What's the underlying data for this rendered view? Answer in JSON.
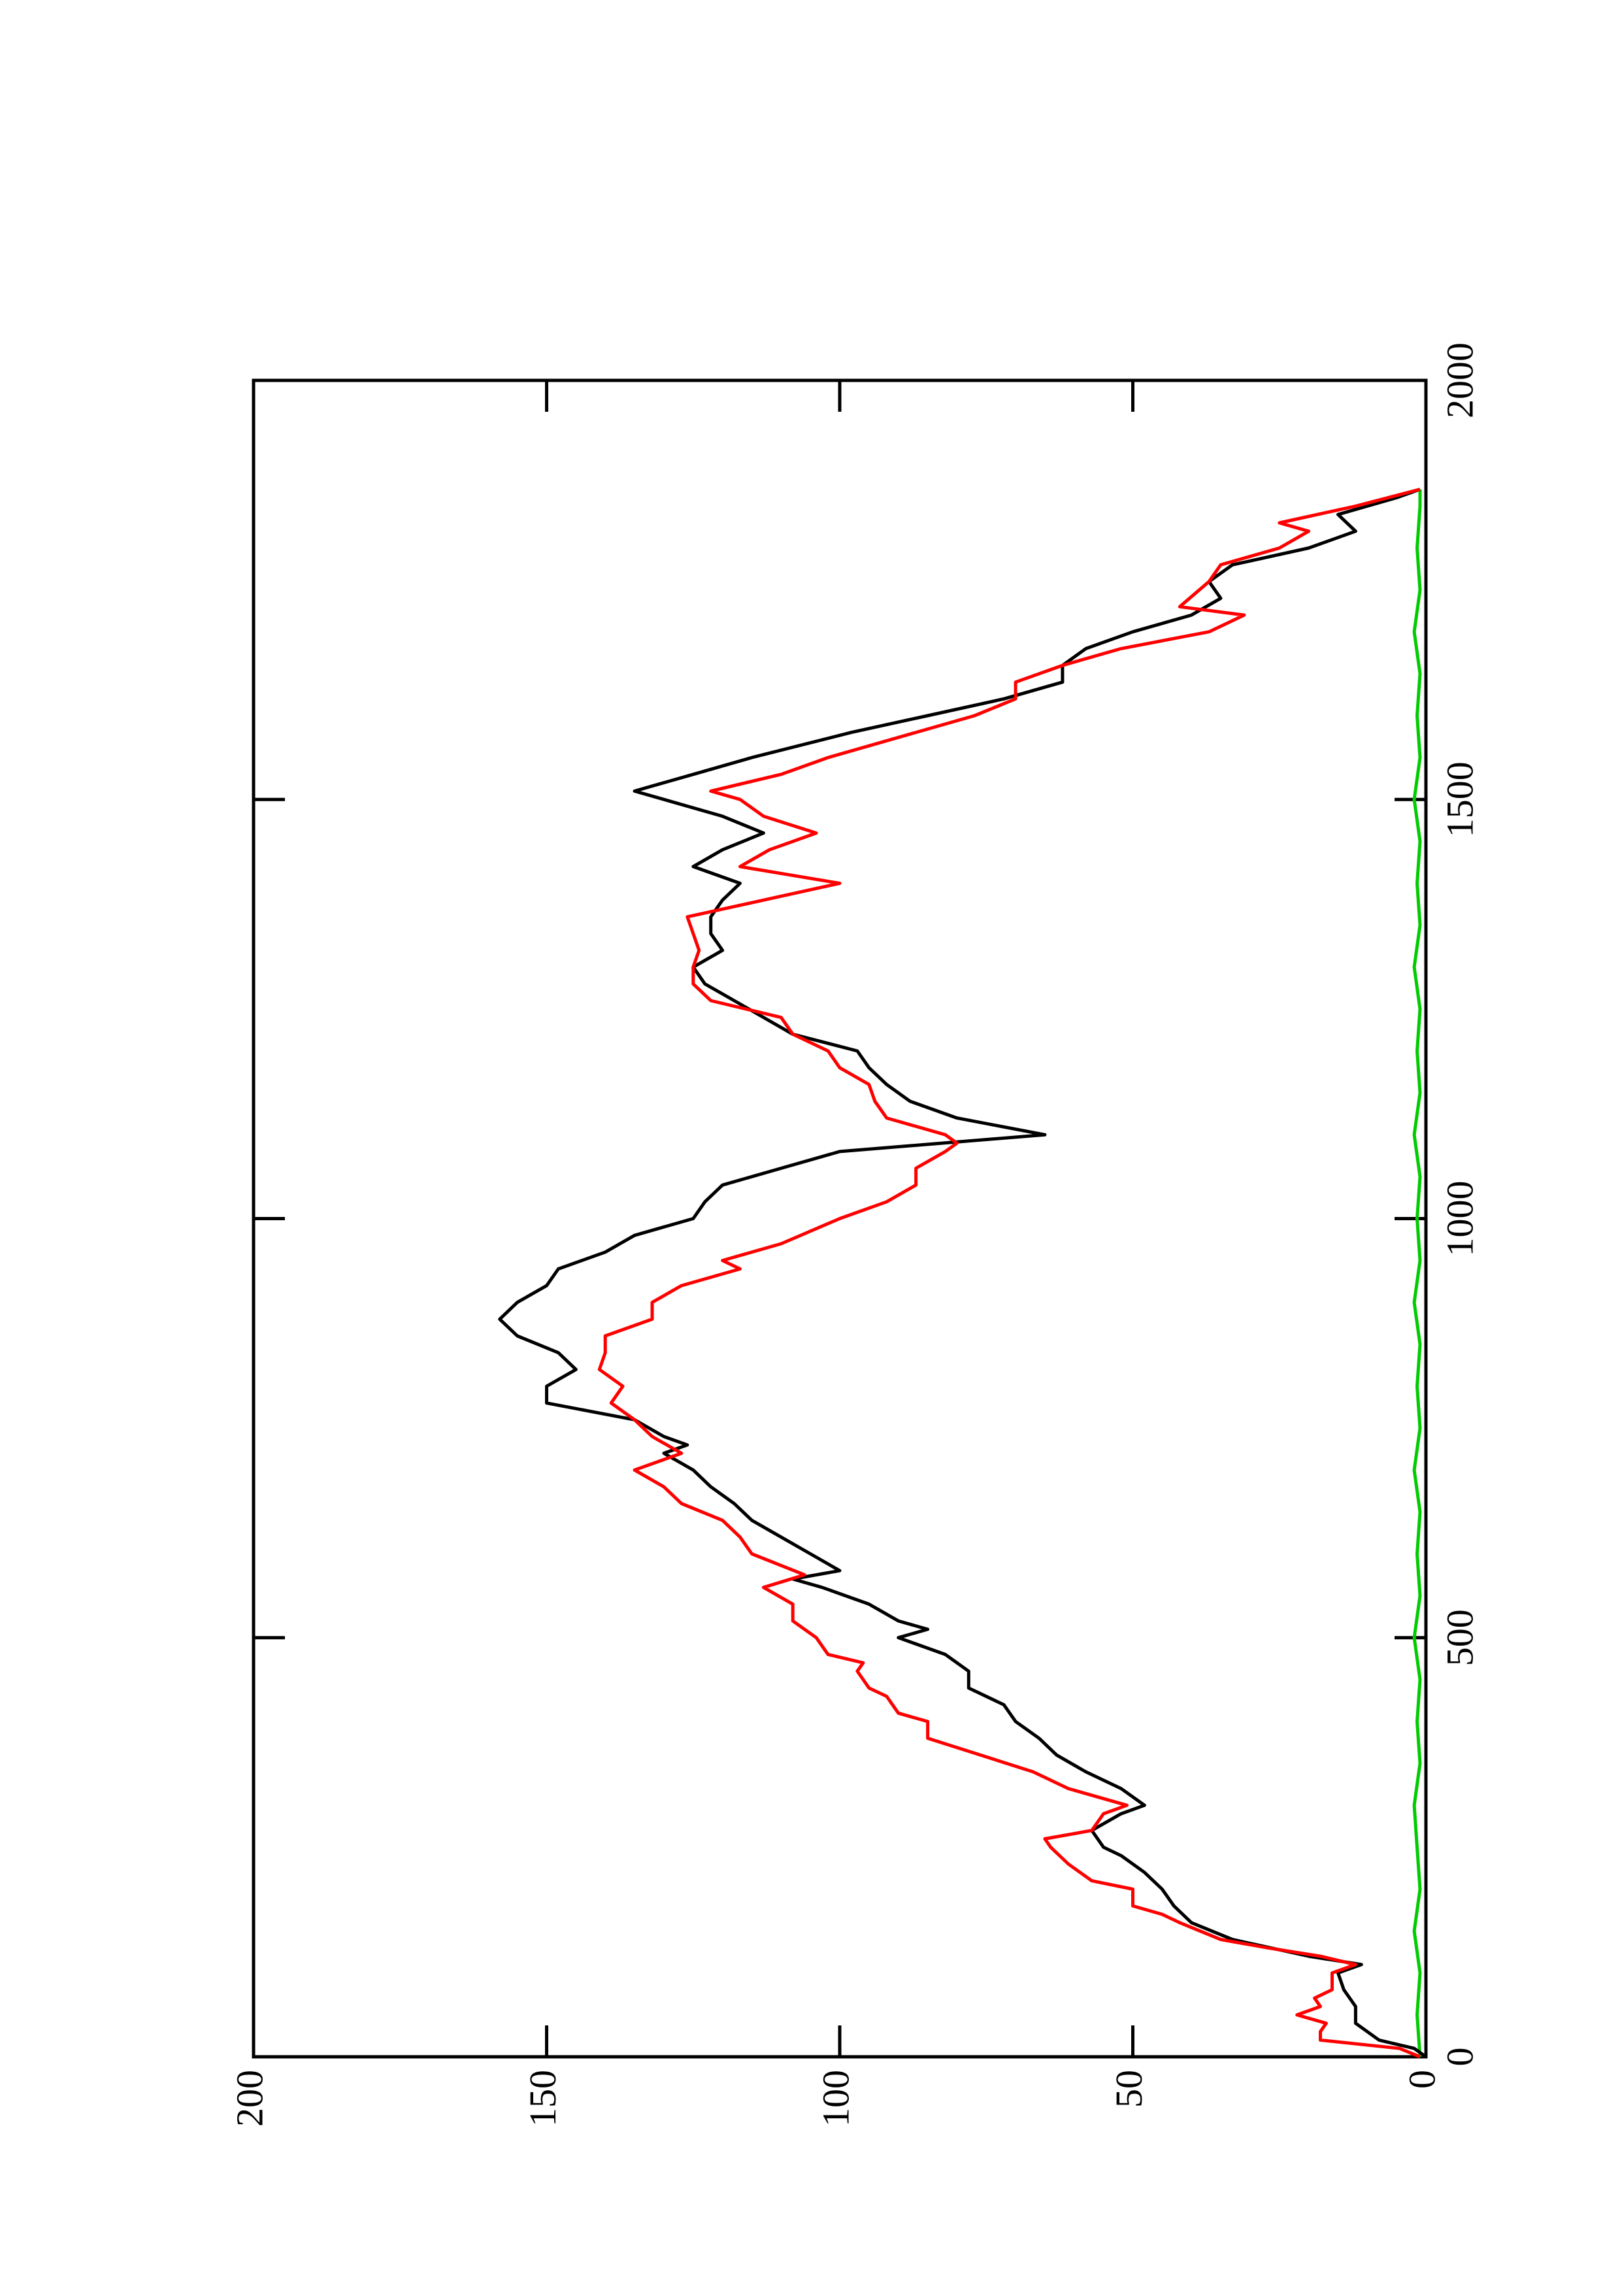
{
  "chart_data": {
    "type": "line",
    "xlim": [
      0,
      2000
    ],
    "xticks": [
      0,
      500,
      1000,
      1500,
      2000
    ],
    "ylim": [
      0,
      200
    ],
    "yticks": [
      0,
      50,
      100,
      150,
      200
    ],
    "series": [
      {
        "color": "#ff0000",
        "x": [
          0,
          10,
          20,
          30,
          40,
          50,
          60,
          70,
          80,
          100,
          110,
          120,
          130,
          140,
          160,
          170,
          180,
          200,
          210,
          230,
          250,
          260,
          270,
          290,
          300,
          320,
          340,
          360,
          380,
          400,
          410,
          430,
          440,
          460,
          470,
          480,
          500,
          520,
          540,
          560,
          575,
          600,
          620,
          640,
          660,
          680,
          700,
          720,
          740,
          760,
          780,
          800,
          820,
          840,
          860,
          880,
          900,
          920,
          940,
          950,
          970,
          1000,
          1020,
          1040,
          1060,
          1080,
          1090,
          1100,
          1120,
          1140,
          1160,
          1180,
          1200,
          1220,
          1240,
          1260,
          1280,
          1300,
          1320,
          1340,
          1360,
          1380,
          1400,
          1420,
          1440,
          1460,
          1480,
          1500,
          1510,
          1530,
          1550,
          1580,
          1600,
          1620,
          1640,
          1660,
          1680,
          1700,
          1720,
          1730,
          1760,
          1780,
          1800,
          1820,
          1830,
          1850,
          1870
        ],
        "values": [
          1,
          4.5,
          18,
          18,
          17,
          22,
          18,
          19,
          16,
          16,
          12,
          18,
          27,
          35,
          42,
          45,
          50,
          50,
          57,
          61,
          64,
          65,
          57,
          55,
          51,
          61,
          67,
          76,
          85,
          85,
          90,
          92,
          95,
          97,
          96,
          102,
          104,
          108,
          108,
          113,
          106,
          115,
          117,
          120,
          127,
          130,
          135,
          127,
          132,
          135,
          139,
          137,
          141,
          140,
          140,
          132,
          132,
          127,
          117,
          120,
          110,
          100,
          92,
          87,
          87,
          82,
          80,
          82,
          92,
          94,
          95,
          100,
          102,
          108,
          110,
          122,
          125,
          125,
          124,
          125,
          126,
          113,
          100,
          117,
          112,
          104,
          113,
          117,
          122,
          110,
          102,
          87,
          77,
          70,
          70,
          62,
          52,
          37,
          31,
          42,
          37,
          35,
          25,
          20,
          25,
          12,
          1
        ]
      },
      {
        "color": "#000000",
        "x": [
          0,
          10,
          20,
          30,
          40,
          60,
          80,
          100,
          110,
          120,
          140,
          160,
          180,
          200,
          220,
          240,
          250,
          270,
          290,
          300,
          320,
          340,
          360,
          380,
          400,
          420,
          440,
          460,
          480,
          500,
          510,
          520,
          540,
          560,
          570,
          580,
          600,
          620,
          640,
          660,
          680,
          700,
          720,
          730,
          740,
          760,
          780,
          800,
          820,
          840,
          860,
          880,
          900,
          920,
          940,
          960,
          980,
          1000,
          1020,
          1040,
          1060,
          1080,
          1100,
          1120,
          1140,
          1160,
          1180,
          1200,
          1220,
          1240,
          1260,
          1280,
          1300,
          1320,
          1340,
          1360,
          1380,
          1400,
          1420,
          1440,
          1460,
          1480,
          1500,
          1510,
          1530,
          1550,
          1580,
          1600,
          1620,
          1640,
          1660,
          1680,
          1700,
          1720,
          1740,
          1760,
          1780,
          1800,
          1820,
          1840,
          1860,
          1870
        ],
        "values": [
          0,
          2,
          8,
          10,
          12,
          12,
          14,
          15,
          11,
          20,
          33,
          40,
          43,
          45,
          48,
          52,
          55,
          57,
          52,
          48,
          52,
          58,
          63,
          66,
          70,
          72,
          78,
          78,
          82,
          90,
          85,
          90,
          95,
          103,
          108,
          100,
          105,
          110,
          115,
          118,
          122,
          125,
          130,
          126,
          130,
          135,
          150,
          150,
          145,
          148,
          155,
          158,
          155,
          150,
          148,
          140,
          135,
          125,
          123,
          120,
          110,
          100,
          65,
          80,
          88,
          92,
          95,
          97,
          108,
          113,
          118,
          123,
          125,
          120,
          122,
          122,
          120,
          117,
          125,
          120,
          113,
          120,
          130,
          135,
          125,
          115,
          98,
          85,
          72,
          62,
          62,
          58,
          50,
          40,
          35,
          37,
          33,
          20,
          12,
          15,
          5,
          1
        ]
      },
      {
        "color": "#00cc00",
        "x": [
          0,
          50,
          100,
          150,
          200,
          250,
          300,
          350,
          400,
          450,
          500,
          550,
          600,
          650,
          700,
          750,
          800,
          850,
          900,
          950,
          1000,
          1050,
          1100,
          1150,
          1200,
          1250,
          1300,
          1350,
          1400,
          1450,
          1500,
          1550,
          1600,
          1650,
          1700,
          1750,
          1800,
          1850,
          1870
        ],
        "values": [
          1,
          1.5,
          1,
          2,
          1,
          1.5,
          2,
          1,
          1.5,
          1,
          2,
          1,
          1.5,
          1,
          2,
          1,
          1.5,
          1,
          2,
          1,
          1.5,
          1,
          2,
          1,
          1.5,
          1,
          2,
          1,
          1.5,
          1,
          2,
          1,
          1.5,
          1,
          2,
          1,
          1.5,
          1,
          1
        ]
      }
    ]
  }
}
